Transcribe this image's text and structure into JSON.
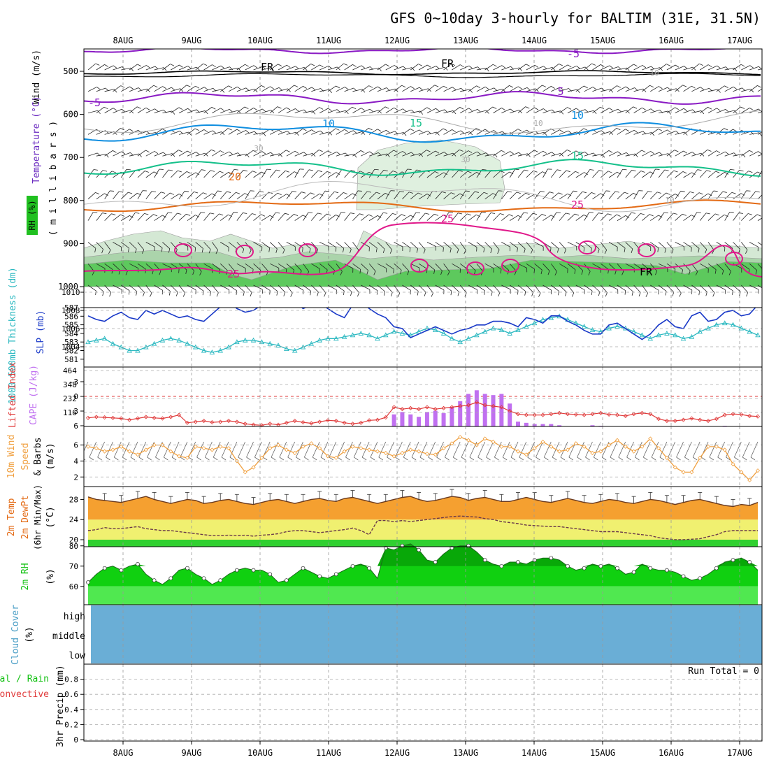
{
  "title": "GFS 0~10day 3-hourly for BALTIM (31E, 31.5N)",
  "dates": [
    "8AUG",
    "9AUG",
    "10AUG",
    "11AUG",
    "12AUG",
    "13AUG",
    "14AUG",
    "15AUG",
    "16AUG",
    "17AUG"
  ],
  "colors": {
    "purple": "#8a1ac4",
    "blue": "#0f8ee0",
    "green": "#14c08a",
    "orange": "#e36a14",
    "magenta": "#e0188a",
    "slp": "#1838c8",
    "thick": "#2ab8c0",
    "cape": "#c070f0",
    "li": "#e03a3a",
    "wind10": "#f0a040",
    "temp_fill": "#f5a030",
    "temp_top": "#e05010",
    "dew_band": "#f0f070",
    "rh_light": "#50e850",
    "rh_mid": "#10d010",
    "rh_dark": "#08a808",
    "cloud": "#6aaed6"
  },
  "panels": {
    "upper": {
      "label_rh": "RH (%)",
      "label_temp": "Temperature (°C)",
      "label_wind": "Wind (m/s)",
      "label_mb": "( m i l l i b a r s )",
      "ticks": [
        "500",
        "600",
        "700",
        "800",
        "900",
        "1000"
      ],
      "iso_labels": [
        {
          "text": "-5",
          "color": "#8a1ac4"
        },
        {
          "text": "-5",
          "color": "#8a1ac4"
        },
        {
          "text": "5",
          "color": "#8a1ac4"
        },
        {
          "text": "10",
          "color": "#0f8ee0"
        },
        {
          "text": "10",
          "color": "#0f8ee0"
        },
        {
          "text": "15",
          "color": "#14c08a"
        },
        {
          "text": "15",
          "color": "#14c08a"
        },
        {
          "text": "20",
          "color": "#e36a14"
        },
        {
          "text": "25",
          "color": "#e0188a"
        },
        {
          "text": "25",
          "color": "#e0188a"
        },
        {
          "text": "25",
          "color": "#e0188a"
        },
        {
          "text": "FR",
          "color": "#000000"
        },
        {
          "text": "FR",
          "color": "#000000"
        },
        {
          "text": "FR",
          "color": "#000000"
        },
        {
          "text": "10",
          "color": "#aaaaaa"
        },
        {
          "text": "10",
          "color": "#aaaaaa"
        },
        {
          "text": "30",
          "color": "#aaaaaa"
        },
        {
          "text": "30",
          "color": "#aaaaaa"
        },
        {
          "text": "10",
          "color": "#aaaaaa"
        }
      ]
    },
    "slp": {
      "label_thick": "1000-500mb Thickness (dm)",
      "label_slp": "SLP (mb)",
      "left_ticks": [
        "587",
        "586",
        "585",
        "584",
        "583",
        "582",
        "581"
      ],
      "right_ticks": [
        "1010",
        "1008",
        "1006",
        "1004"
      ]
    },
    "cape": {
      "label_li": "Lifted Index",
      "label_cape": "CAPE (J/kg)",
      "left_ticks": [
        "-3",
        "0",
        "3",
        "6"
      ],
      "right_ticks": [
        "464",
        "348",
        "232",
        "116"
      ]
    },
    "wind10": {
      "label_a": "10m Wind",
      "label_b": "Speed",
      "label_c": "& Barbs",
      "label_unit": "(m/s)",
      "ticks": [
        "6",
        "4",
        "2"
      ]
    },
    "temp": {
      "label_a": "2m Temp",
      "label_b": "2m DewPt",
      "label_c": "(6hr Min/Max)",
      "label_unit": "(°C)",
      "ticks": [
        "28",
        "24",
        "20"
      ]
    },
    "rh": {
      "label_a": "2m RH",
      "label_unit": "(%)",
      "ticks": [
        "80",
        "70",
        "60"
      ]
    },
    "cloud": {
      "label_a": "Cloud Cover",
      "label_unit": "(%)",
      "levels": [
        "high",
        "middle",
        "low"
      ]
    },
    "precip": {
      "label_a": "Total / Rain",
      "label_b": "Convective",
      "label_c": "3hr Precip (mm)",
      "ticks": [
        "0.8",
        "0.6",
        "0.4",
        "0.2",
        "0"
      ],
      "run_total": "Run Total = 0"
    }
  },
  "chart_data": [
    {
      "type": "line",
      "title": "1000-500mb Thickness & SLP",
      "series": [
        {
          "name": "SLP (mb)",
          "values": [
            1007.4,
            1007.0,
            1006.8,
            1007.4,
            1007.8,
            1007.2,
            1007.0,
            1008.0,
            1007.6,
            1008.0,
            1007.6,
            1007.2,
            1007.4,
            1007.0,
            1006.8,
            1007.6,
            1008.4,
            1009.0,
            1008.2,
            1007.8,
            1008.0,
            1008.6,
            1009.4,
            1009.8,
            1009.2,
            1009.0,
            1008.2,
            1008.6,
            1008.8,
            1008.2,
            1007.6,
            1007.2,
            1008.6,
            1009.0,
            1008.2,
            1007.6,
            1007.2,
            1006.2,
            1006.0,
            1005.0,
            1005.4,
            1005.8,
            1006.2,
            1005.8,
            1005.4,
            1005.8,
            1006.0,
            1006.4,
            1006.4,
            1006.8,
            1006.8,
            1006.6,
            1006.2,
            1007.2,
            1007.0,
            1006.6,
            1007.4,
            1007.4,
            1006.8,
            1006.4,
            1005.8,
            1005.4,
            1005.4,
            1006.4,
            1006.6,
            1006.0,
            1005.4,
            1004.8,
            1005.4,
            1006.4,
            1007.0,
            1006.2,
            1006.0,
            1007.4,
            1007.8,
            1006.8,
            1007.0,
            1007.8,
            1008.0,
            1007.4,
            1007.6,
            1008.6
          ]
        },
        {
          "name": "Thickness (dm)",
          "values": [
            583.0,
            583.2,
            583.4,
            582.8,
            582.4,
            582.0,
            582.0,
            582.4,
            582.8,
            583.2,
            583.4,
            583.2,
            582.8,
            582.4,
            582.0,
            581.8,
            582.0,
            582.4,
            583.0,
            583.2,
            583.2,
            583.0,
            582.8,
            582.6,
            582.2,
            582.0,
            582.4,
            582.8,
            583.2,
            583.4,
            583.4,
            583.6,
            583.8,
            584.0,
            583.8,
            583.4,
            583.8,
            584.2,
            584.0,
            583.8,
            584.2,
            584.6,
            584.4,
            584.0,
            583.4,
            583.0,
            583.4,
            583.8,
            584.2,
            584.6,
            584.4,
            584.0,
            584.4,
            584.8,
            585.2,
            585.6,
            585.8,
            586.0,
            585.6,
            585.2,
            584.8,
            584.4,
            584.2,
            584.6,
            584.8,
            584.6,
            584.2,
            583.8,
            583.4,
            583.8,
            584.0,
            583.8,
            583.4,
            583.6,
            584.2,
            584.6,
            585.0,
            585.2,
            585.0,
            584.6,
            584.2,
            583.8
          ]
        }
      ],
      "ylabel": "SLP (mb)"
    },
    {
      "type": "bar",
      "title": "CAPE & Lifted Index",
      "series": [
        {
          "name": "CAPE (J/kg)",
          "values": [
            0,
            0,
            0,
            0,
            0,
            0,
            0,
            0,
            0,
            0,
            0,
            0,
            0,
            0,
            0,
            0,
            0,
            0,
            0,
            0,
            0,
            0,
            0,
            0,
            0,
            0,
            0,
            0,
            0,
            0,
            0,
            0,
            0,
            0,
            0,
            0,
            0,
            100,
            120,
            100,
            80,
            120,
            130,
            110,
            160,
            210,
            270,
            300,
            270,
            260,
            270,
            190,
            40,
            30,
            20,
            20,
            20,
            10,
            0,
            0,
            0,
            10,
            5,
            0,
            0,
            0,
            0,
            0,
            0,
            0,
            0,
            0,
            0,
            0,
            0,
            0,
            0,
            5,
            0,
            0,
            0,
            0
          ]
        },
        {
          "name": "Lifted Index",
          "values": [
            4.4,
            4.2,
            4.3,
            4.4,
            4.5,
            4.8,
            4.5,
            4.2,
            4.4,
            4.5,
            4.2,
            3.8,
            5.4,
            5.2,
            5.0,
            5.3,
            5.2,
            5.0,
            5.2,
            5.6,
            5.8,
            5.9,
            5.6,
            5.8,
            5.4,
            5.0,
            5.3,
            5.5,
            5.2,
            4.9,
            5.0,
            5.4,
            5.6,
            5.4,
            4.9,
            4.8,
            4.3,
            2.2,
            2.6,
            2.4,
            2.6,
            2.2,
            2.6,
            2.4,
            2.2,
            2.0,
            1.8,
            1.2,
            1.8,
            2.0,
            2.2,
            3.0,
            3.6,
            3.8,
            3.8,
            3.8,
            3.6,
            3.4,
            3.6,
            3.7,
            3.8,
            3.6,
            3.4,
            3.7,
            3.8,
            4.0,
            3.6,
            3.4,
            3.6,
            4.6,
            5.0,
            5.0,
            4.8,
            4.5,
            4.8,
            5.0,
            4.6,
            3.8,
            3.6,
            3.7,
            4.0,
            4.1
          ]
        }
      ],
      "ylabel": "CAPE (J/kg)"
    },
    {
      "type": "line",
      "title": "10m Wind Speed",
      "series": [
        {
          "name": "Speed (m/s)",
          "values": [
            5.8,
            5.6,
            5.2,
            5.4,
            5.8,
            5.2,
            4.8,
            5.4,
            6.0,
            6.0,
            5.2,
            4.6,
            4.4,
            5.8,
            5.6,
            5.4,
            5.8,
            5.6,
            4.0,
            2.6,
            3.2,
            4.4,
            5.6,
            6.0,
            5.4,
            5.0,
            5.8,
            6.2,
            5.6,
            4.6,
            4.4,
            5.2,
            5.8,
            5.6,
            5.4,
            5.2,
            5.0,
            4.6,
            5.0,
            5.4,
            5.2,
            4.9,
            4.8,
            5.6,
            6.2,
            7.0,
            6.6,
            6.0,
            6.8,
            6.4,
            5.8,
            5.8,
            5.2,
            4.8,
            5.6,
            6.4,
            5.8,
            5.2,
            5.4,
            6.2,
            5.8,
            5.0,
            5.2,
            6.0,
            6.6,
            5.8,
            5.2,
            5.8,
            6.8,
            5.6,
            4.4,
            3.2,
            2.6,
            2.6,
            4.4,
            5.8,
            5.8,
            5.4,
            3.6,
            2.6,
            1.6,
            2.8
          ]
        }
      ],
      "ylabel": "(m/s)"
    },
    {
      "type": "area",
      "title": "2m Temp / 2m DewPt",
      "series": [
        {
          "name": "2m Temp (°C)",
          "values": [
            28.5,
            28.0,
            27.8,
            27.6,
            27.4,
            27.8,
            28.2,
            28.6,
            28.0,
            27.6,
            27.2,
            27.6,
            28.0,
            27.8,
            27.2,
            27.4,
            27.8,
            28.0,
            27.6,
            27.2,
            27.0,
            27.4,
            27.8,
            28.0,
            27.6,
            27.2,
            27.6,
            28.0,
            28.2,
            27.8,
            27.6,
            28.2,
            28.4,
            28.0,
            27.6,
            27.2,
            27.6,
            28.0,
            28.4,
            28.6,
            28.0,
            27.6,
            27.8,
            28.2,
            28.6,
            28.4,
            27.8,
            28.2,
            28.4,
            28.0,
            27.6,
            27.6,
            28.0,
            28.4,
            28.0,
            27.6,
            27.4,
            27.8,
            28.2,
            27.8,
            27.4,
            27.2,
            27.6,
            28.0,
            27.8,
            27.4,
            27.2,
            27.6,
            28.0,
            27.8,
            27.4,
            27.0,
            27.4,
            27.8,
            28.0,
            27.6,
            27.2,
            26.8,
            26.6,
            27.0,
            26.8,
            27.4
          ]
        },
        {
          "name": "2m DewPt (°C)",
          "values": [
            21.8,
            22.0,
            22.4,
            22.2,
            22.2,
            22.4,
            22.6,
            22.2,
            22.0,
            21.8,
            21.8,
            21.6,
            21.4,
            21.2,
            21.0,
            20.8,
            20.8,
            20.9,
            20.8,
            20.9,
            20.7,
            20.9,
            21.0,
            21.2,
            21.6,
            21.8,
            21.8,
            21.6,
            21.4,
            21.6,
            21.8,
            22.0,
            22.3,
            21.8,
            21.0,
            23.8,
            23.8,
            23.6,
            23.8,
            23.6,
            23.8,
            24.0,
            24.2,
            24.4,
            24.6,
            24.7,
            24.6,
            24.5,
            24.2,
            24.0,
            23.6,
            23.4,
            23.2,
            22.9,
            22.8,
            22.7,
            22.6,
            22.6,
            22.4,
            22.2,
            22.0,
            21.8,
            21.6,
            21.6,
            21.6,
            21.4,
            21.2,
            21.0,
            20.8,
            20.4,
            20.2,
            20.0,
            20.0,
            20.1,
            20.2,
            20.6,
            21.0,
            21.6,
            21.8,
            21.8,
            21.8,
            21.8
          ]
        }
      ],
      "ylabel": "(°C)"
    },
    {
      "type": "area",
      "title": "2m RH",
      "series": [
        {
          "name": "2m RH (%)",
          "values": [
            62,
            66,
            69,
            70,
            68,
            70,
            71,
            66,
            63,
            61,
            64,
            68,
            69,
            66,
            64,
            61,
            63,
            66,
            68,
            69,
            68,
            68,
            66,
            62,
            63,
            66,
            69,
            67,
            65,
            64,
            66,
            68,
            70,
            71,
            69,
            64,
            79,
            78,
            80,
            81,
            78,
            73,
            72,
            76,
            79,
            80,
            80,
            77,
            73,
            71,
            70,
            72,
            72,
            71,
            73,
            74,
            74,
            73,
            70,
            68,
            69,
            71,
            70,
            71,
            69,
            66,
            67,
            71,
            69,
            68,
            68,
            67,
            65,
            63,
            64,
            66,
            69,
            72,
            73,
            74,
            72,
            68
          ]
        }
      ],
      "ylabel": "(%)"
    },
    {
      "type": "bar",
      "title": "3hr Precip",
      "series": [
        {
          "name": "3hr Precip (mm)",
          "values": [
            0,
            0,
            0,
            0,
            0,
            0,
            0,
            0,
            0,
            0,
            0,
            0,
            0,
            0,
            0,
            0,
            0,
            0,
            0,
            0,
            0,
            0,
            0,
            0,
            0,
            0,
            0,
            0,
            0,
            0,
            0,
            0,
            0,
            0,
            0,
            0,
            0,
            0,
            0,
            0,
            0,
            0,
            0,
            0,
            0,
            0,
            0,
            0,
            0,
            0,
            0,
            0,
            0,
            0,
            0,
            0,
            0,
            0,
            0,
            0,
            0,
            0,
            0,
            0,
            0,
            0,
            0,
            0,
            0,
            0,
            0,
            0,
            0,
            0,
            0,
            0,
            0,
            0,
            0,
            0,
            0,
            0
          ]
        }
      ],
      "ylabel": "(mm)",
      "ylim": [
        0,
        1
      ]
    }
  ]
}
